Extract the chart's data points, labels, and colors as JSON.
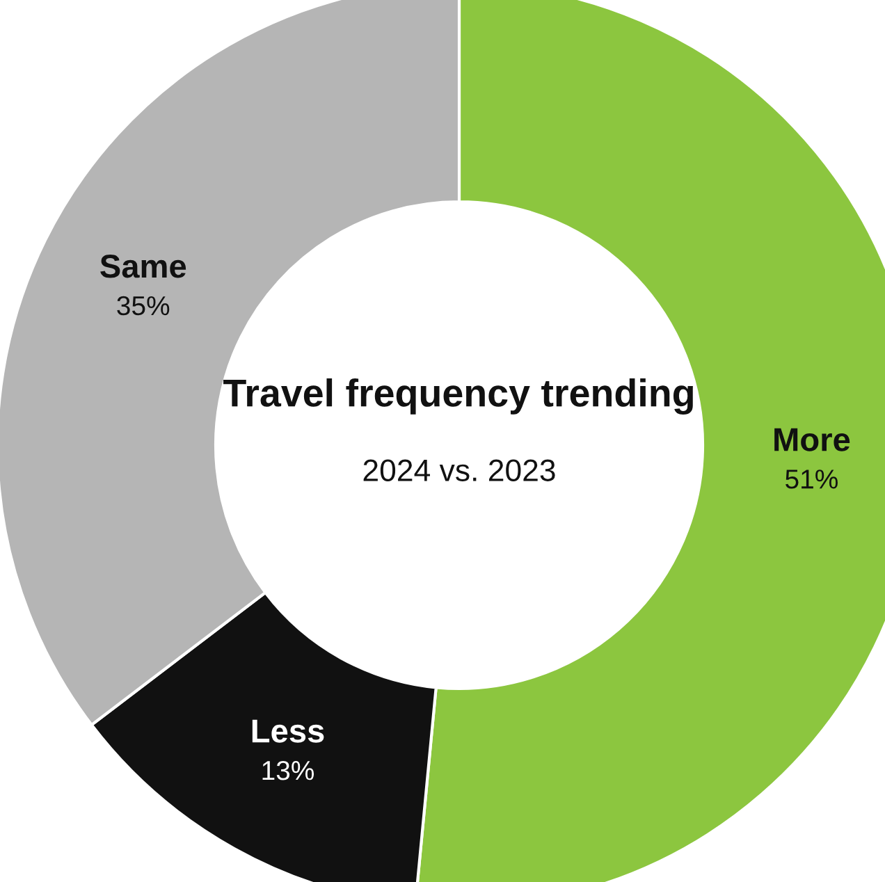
{
  "chart_data": {
    "type": "donut",
    "title": "Travel frequency trending",
    "subtitle": "2024 vs. 2023",
    "categories": [
      "More",
      "Less",
      "Same"
    ],
    "values": [
      51,
      13,
      35
    ],
    "value_labels": [
      "51%",
      "13%",
      "35%"
    ],
    "colors": [
      "#8cc63f",
      "#111111",
      "#b5b5b5"
    ]
  }
}
